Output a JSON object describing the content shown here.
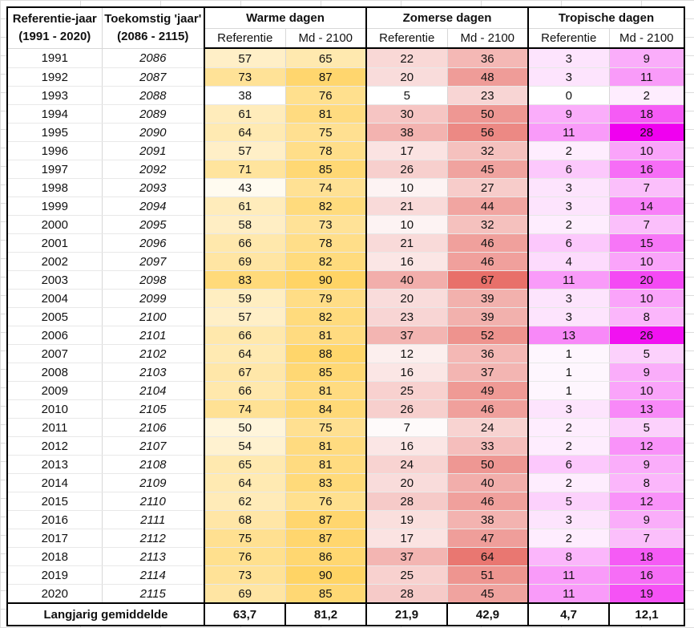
{
  "headers": {
    "ref_year": "Referentie-jaar",
    "ref_range": "(1991 - 2020)",
    "fut_year": "Toekomstig 'jaar'",
    "fut_range": "(2086 - 2115)",
    "groups": [
      "Warme dagen",
      "Zomerse dagen",
      "Tropische dagen"
    ],
    "sub_ref": "Referentie",
    "sub_md": "Md - 2100"
  },
  "colors": {
    "warm": "#ffd465",
    "zomers": "#e8706a",
    "tropisch": "#f000f0"
  },
  "rows": [
    {
      "ref": "1991",
      "fut": "2086",
      "v": [
        57,
        65,
        22,
        36,
        3,
        9
      ]
    },
    {
      "ref": "1992",
      "fut": "2087",
      "v": [
        73,
        87,
        20,
        48,
        3,
        11
      ]
    },
    {
      "ref": "1993",
      "fut": "2088",
      "v": [
        38,
        76,
        5,
        23,
        0,
        2
      ]
    },
    {
      "ref": "1994",
      "fut": "2089",
      "v": [
        61,
        81,
        30,
        50,
        9,
        18
      ]
    },
    {
      "ref": "1995",
      "fut": "2090",
      "v": [
        64,
        75,
        38,
        56,
        11,
        28
      ]
    },
    {
      "ref": "1996",
      "fut": "2091",
      "v": [
        57,
        78,
        17,
        32,
        2,
        10
      ]
    },
    {
      "ref": "1997",
      "fut": "2092",
      "v": [
        71,
        85,
        26,
        45,
        6,
        16
      ]
    },
    {
      "ref": "1998",
      "fut": "2093",
      "v": [
        43,
        74,
        10,
        27,
        3,
        7
      ]
    },
    {
      "ref": "1999",
      "fut": "2094",
      "v": [
        61,
        82,
        21,
        44,
        3,
        14
      ]
    },
    {
      "ref": "2000",
      "fut": "2095",
      "v": [
        58,
        73,
        10,
        32,
        2,
        7
      ]
    },
    {
      "ref": "2001",
      "fut": "2096",
      "v": [
        66,
        78,
        21,
        46,
        6,
        15
      ]
    },
    {
      "ref": "2002",
      "fut": "2097",
      "v": [
        69,
        82,
        16,
        46,
        4,
        10
      ]
    },
    {
      "ref": "2003",
      "fut": "2098",
      "v": [
        83,
        90,
        40,
        67,
        11,
        20
      ]
    },
    {
      "ref": "2004",
      "fut": "2099",
      "v": [
        59,
        79,
        20,
        39,
        3,
        10
      ]
    },
    {
      "ref": "2005",
      "fut": "2100",
      "v": [
        57,
        82,
        23,
        39,
        3,
        8
      ]
    },
    {
      "ref": "2006",
      "fut": "2101",
      "v": [
        66,
        81,
        37,
        52,
        13,
        26
      ]
    },
    {
      "ref": "2007",
      "fut": "2102",
      "v": [
        64,
        88,
        12,
        36,
        1,
        5
      ]
    },
    {
      "ref": "2008",
      "fut": "2103",
      "v": [
        67,
        85,
        16,
        37,
        1,
        9
      ]
    },
    {
      "ref": "2009",
      "fut": "2104",
      "v": [
        66,
        81,
        25,
        49,
        1,
        10
      ]
    },
    {
      "ref": "2010",
      "fut": "2105",
      "v": [
        74,
        84,
        26,
        46,
        3,
        13
      ]
    },
    {
      "ref": "2011",
      "fut": "2106",
      "v": [
        50,
        75,
        7,
        24,
        2,
        5
      ]
    },
    {
      "ref": "2012",
      "fut": "2107",
      "v": [
        54,
        81,
        16,
        33,
        2,
        12
      ]
    },
    {
      "ref": "2013",
      "fut": "2108",
      "v": [
        65,
        81,
        24,
        50,
        6,
        9
      ]
    },
    {
      "ref": "2014",
      "fut": "2109",
      "v": [
        64,
        83,
        20,
        40,
        2,
        8
      ]
    },
    {
      "ref": "2015",
      "fut": "2110",
      "v": [
        62,
        76,
        28,
        46,
        5,
        12
      ]
    },
    {
      "ref": "2016",
      "fut": "2111",
      "v": [
        68,
        87,
        19,
        38,
        3,
        9
      ]
    },
    {
      "ref": "2017",
      "fut": "2112",
      "v": [
        75,
        87,
        17,
        47,
        2,
        7
      ]
    },
    {
      "ref": "2018",
      "fut": "2113",
      "v": [
        76,
        86,
        37,
        64,
        8,
        18
      ]
    },
    {
      "ref": "2019",
      "fut": "2114",
      "v": [
        73,
        90,
        25,
        51,
        11,
        16
      ]
    },
    {
      "ref": "2020",
      "fut": "2115",
      "v": [
        69,
        85,
        28,
        45,
        11,
        19
      ]
    }
  ],
  "footer": {
    "label": "Langjarig gemiddelde",
    "values": [
      "63,7",
      "81,2",
      "21,9",
      "42,9",
      "4,7",
      "12,1"
    ]
  }
}
